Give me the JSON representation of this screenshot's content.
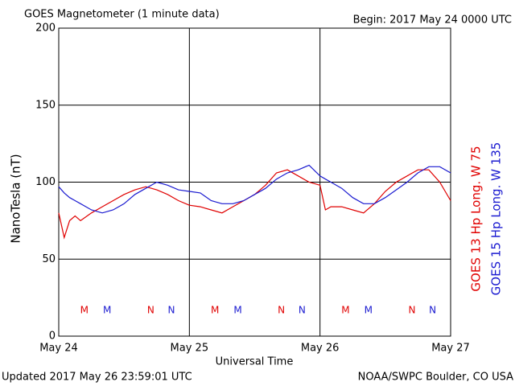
{
  "chart_data": {
    "type": "line",
    "title": "GOES Magnetometer (1 minute data)",
    "subtitle": "Begin:  2017 May 24 0000 UTC",
    "y_label": "NanoTesla (nT)",
    "x_label": "Universal Time",
    "footer_left": "Updated 2017 May 26 23:59:01 UTC",
    "footer_right": "NOAA/SWPC Boulder, CO USA",
    "x": [
      0,
      1,
      2,
      3,
      4,
      6,
      8,
      10,
      12,
      14,
      16,
      18,
      20,
      22,
      24,
      26,
      28,
      30,
      32,
      34,
      36,
      38,
      40,
      42,
      44,
      46,
      48,
      49,
      50,
      52,
      54,
      56,
      58,
      60,
      62,
      64,
      66,
      68,
      70,
      72
    ],
    "xlim": [
      0,
      72
    ],
    "xticks": [
      {
        "value": 0,
        "label": "May 24"
      },
      {
        "value": 24,
        "label": "May 25"
      },
      {
        "value": 48,
        "label": "May 26"
      },
      {
        "value": 72,
        "label": "May 27"
      }
    ],
    "ylim": [
      0,
      200
    ],
    "yticks": [
      0,
      50,
      100,
      150,
      200
    ],
    "grid": true,
    "series": [
      {
        "name": "GOES 13 Hp  Long. W 75",
        "color": "#e00000",
        "values": [
          80,
          64,
          75,
          78,
          75,
          80,
          84,
          88,
          92,
          95,
          97,
          95,
          92,
          88,
          85,
          84,
          82,
          80,
          84,
          88,
          92,
          98,
          106,
          108,
          104,
          100,
          98,
          82,
          84,
          84,
          82,
          80,
          86,
          94,
          100,
          104,
          108,
          108,
          100,
          88
        ]
      },
      {
        "name": "GOES 15 Hp  Long. W 135",
        "color": "#1a1ad0",
        "values": [
          97,
          93,
          90,
          88,
          86,
          82,
          80,
          82,
          86,
          92,
          96,
          100,
          98,
          95,
          94,
          93,
          88,
          86,
          86,
          88,
          92,
          96,
          102,
          106,
          108,
          111,
          104,
          102,
          100,
          96,
          90,
          86,
          86,
          90,
          95,
          100,
          106,
          110,
          110,
          106
        ]
      }
    ],
    "markers": [
      {
        "text": "M",
        "series": 0,
        "x": 4.7
      },
      {
        "text": "M",
        "series": 1,
        "x": 8.9
      },
      {
        "text": "N",
        "series": 0,
        "x": 16.9
      },
      {
        "text": "N",
        "series": 1,
        "x": 20.7
      },
      {
        "text": "M",
        "series": 0,
        "x": 28.7
      },
      {
        "text": "M",
        "series": 1,
        "x": 32.9
      },
      {
        "text": "N",
        "series": 0,
        "x": 40.9
      },
      {
        "text": "N",
        "series": 1,
        "x": 44.7
      },
      {
        "text": "M",
        "series": 0,
        "x": 52.7
      },
      {
        "text": "M",
        "series": 1,
        "x": 56.9
      },
      {
        "text": "N",
        "series": 0,
        "x": 64.9
      },
      {
        "text": "N",
        "series": 1,
        "x": 68.7
      }
    ]
  }
}
